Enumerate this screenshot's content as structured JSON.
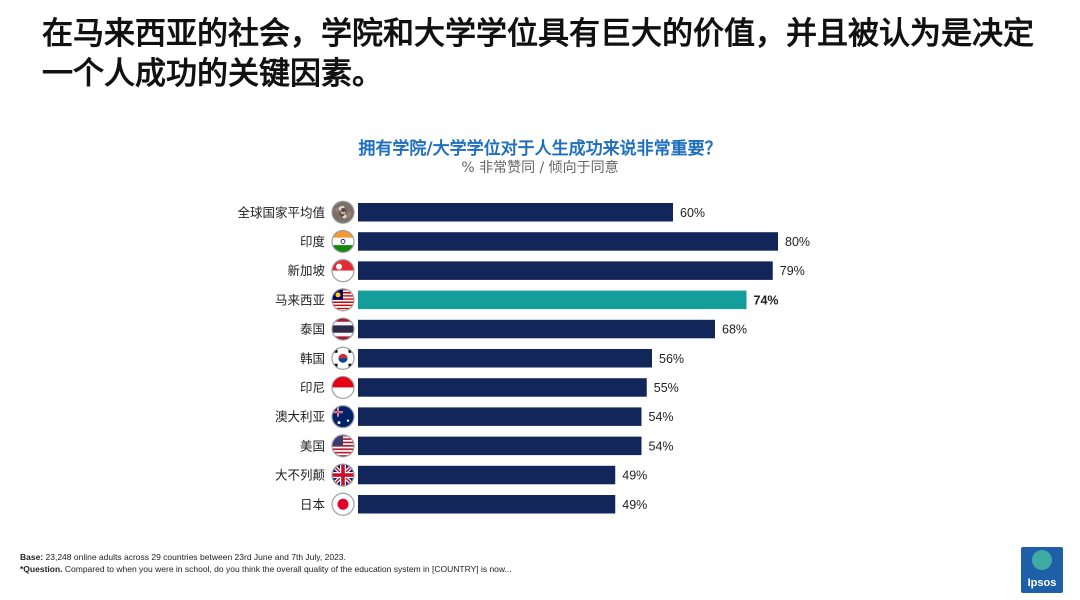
{
  "slide": {
    "title": "在马来西亚的社会，学院和大学学位具有巨大的价值，并且被认为是决定一个人成功的关键因素。"
  },
  "footnote": {
    "base_label": "Base:",
    "base_text": " 23,248 online adults across 29 countries between 23rd June and 7th July, 2023.",
    "question_label": "*Question.",
    "question_text": " Compared to when you were in school, do you think the overall quality of the education system in [COUNTRY] is now..."
  },
  "logo": {
    "text": "Ipsos"
  },
  "colors": {
    "bar": "#13265a",
    "highlight": "#139e9c",
    "title": "#1f6fbf"
  },
  "chart_data": {
    "type": "bar",
    "orientation": "horizontal",
    "title": "拥有学院/大学学位对于人生成功来说非常重要？",
    "subtitle": "% 非常赞同 / 倾向于同意",
    "categories": [
      "全球国家平均值",
      "印度",
      "新加坡",
      "马来西亚",
      "泰国",
      "韩国",
      "印尼",
      "澳大利亚",
      "美国",
      "大不列颠",
      "日本"
    ],
    "flags": [
      "globe-icon",
      "india-flag-icon",
      "singapore-flag-icon",
      "malaysia-flag-icon",
      "thailand-flag-icon",
      "korea-flag-icon",
      "indonesia-flag-icon",
      "australia-flag-icon",
      "usa-flag-icon",
      "uk-flag-icon",
      "japan-flag-icon"
    ],
    "values": [
      60,
      80,
      79,
      74,
      68,
      56,
      55,
      54,
      54,
      49,
      49
    ],
    "labels": [
      "60%",
      "80%",
      "79%",
      "74%",
      "68%",
      "56%",
      "55%",
      "54%",
      "54%",
      "49%",
      "49%"
    ],
    "highlight": "马来西亚",
    "unit": "%",
    "xlim": [
      0,
      80
    ]
  }
}
